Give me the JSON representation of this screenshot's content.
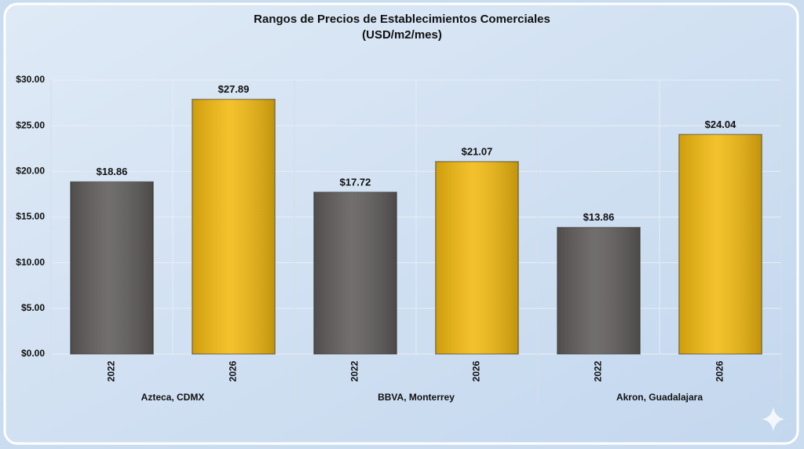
{
  "chart_data": {
    "type": "bar",
    "title": "Rangos de Precios de Establecimientos Comerciales",
    "subtitle": "(USD/m2/mes)",
    "categories": [
      "2022",
      "2026",
      "2022",
      "2026",
      "2022",
      "2026"
    ],
    "groups": [
      "Azteca, CDMX",
      "BBVA, Monterrey",
      "Akron, Guadalajara"
    ],
    "values": [
      18.86,
      27.89,
      17.72,
      21.07,
      13.86,
      24.04
    ],
    "value_labels": [
      "$18.86",
      "$27.89",
      "$17.72",
      "$21.07",
      "$13.86",
      "$24.04"
    ],
    "colors": [
      "#5e5b5a",
      "#f2b90f",
      "#5e5b5a",
      "#f2b90f",
      "#5e5b5a",
      "#f2b90f"
    ],
    "ylim": [
      0,
      30
    ],
    "yticks": [
      {
        "value": 0,
        "label": "$0.00"
      },
      {
        "value": 5,
        "label": "$5.00"
      },
      {
        "value": 10,
        "label": "$10.00"
      },
      {
        "value": 15,
        "label": "$15.00"
      },
      {
        "value": 20,
        "label": "$20.00"
      },
      {
        "value": 25,
        "label": "$25.00"
      },
      {
        "value": 30,
        "label": "$30.00"
      }
    ],
    "grid": true
  }
}
